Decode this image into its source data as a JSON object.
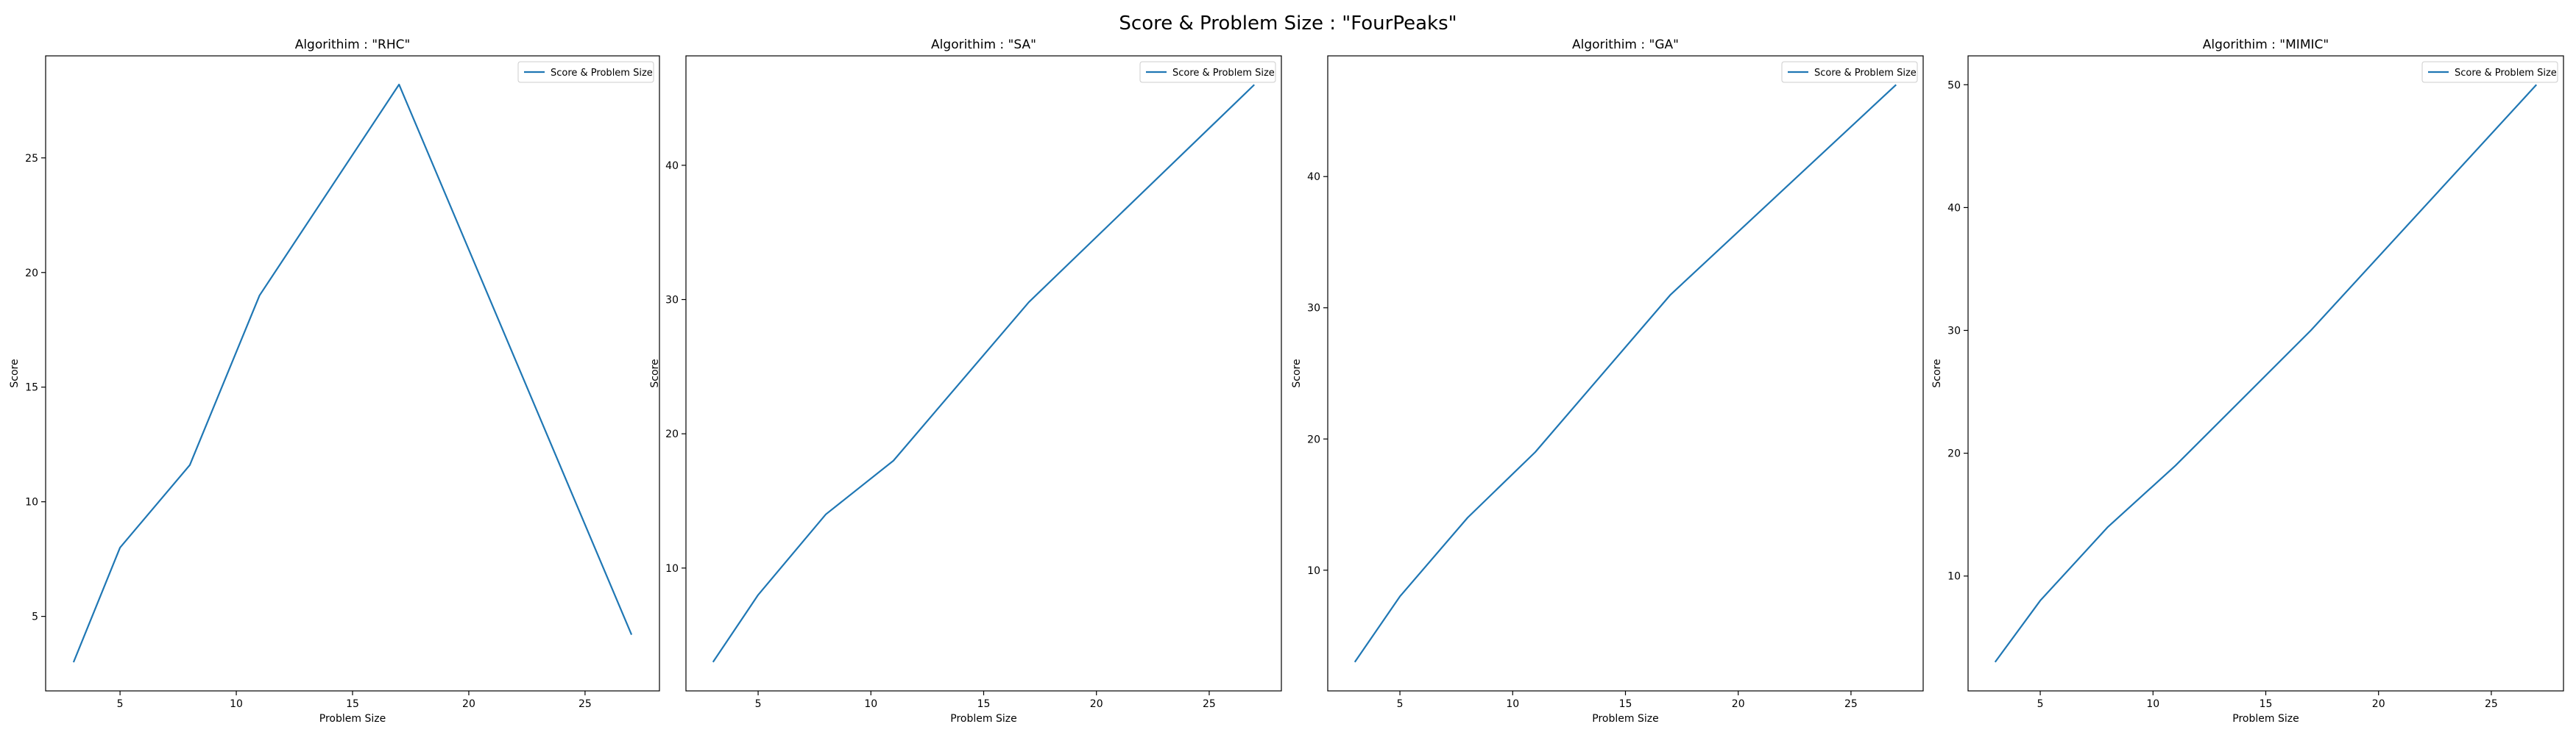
{
  "figure": {
    "title": "Score & Problem Size : \"FourPeaks\""
  },
  "style": {
    "line_color": "#1f77b4",
    "axis_color": "#000000",
    "background": "#ffffff"
  },
  "chart_data": [
    {
      "type": "line",
      "title": "Algorithim : \"RHC\"",
      "xlabel": "Problem Size",
      "ylabel": "Score",
      "legend": "top-right",
      "grid": false,
      "xlim": [
        1.8,
        28.2
      ],
      "ylim": [
        1.75,
        29.45
      ],
      "xticks": [
        5,
        10,
        15,
        20,
        25
      ],
      "yticks": [
        5,
        10,
        15,
        20,
        25
      ],
      "series": [
        {
          "name": "Score & Problem Size",
          "x": [
            3,
            5,
            8,
            11,
            17,
            27
          ],
          "y": [
            3,
            8,
            11.6,
            19,
            28.2,
            4.2
          ]
        }
      ]
    },
    {
      "type": "line",
      "title": "Algorithim : \"SA\"",
      "xlabel": "Problem Size",
      "ylabel": "Score",
      "legend": "top-right",
      "grid": false,
      "xlim": [
        1.8,
        28.2
      ],
      "ylim": [
        0.85,
        48.15
      ],
      "xticks": [
        5,
        10,
        15,
        20,
        25
      ],
      "yticks": [
        10,
        20,
        30,
        40
      ],
      "series": [
        {
          "name": "Score & Problem Size",
          "x": [
            3,
            5,
            8,
            11,
            17,
            27
          ],
          "y": [
            3,
            8,
            14,
            18,
            29.8,
            46
          ]
        }
      ]
    },
    {
      "type": "line",
      "title": "Algorithim : \"GA\"",
      "xlabel": "Problem Size",
      "ylabel": "Score",
      "legend": "top-right",
      "grid": false,
      "xlim": [
        1.8,
        28.2
      ],
      "ylim": [
        0.8,
        49.2
      ],
      "xticks": [
        5,
        10,
        15,
        20,
        25
      ],
      "yticks": [
        10,
        20,
        30,
        40
      ],
      "series": [
        {
          "name": "Score & Problem Size",
          "x": [
            3,
            5,
            8,
            11,
            17,
            27
          ],
          "y": [
            3,
            8,
            14,
            19,
            31,
            47
          ]
        }
      ]
    },
    {
      "type": "line",
      "title": "Algorithim : \"MIMIC\"",
      "xlabel": "Problem Size",
      "ylabel": "Score",
      "legend": "top-right",
      "grid": false,
      "xlim": [
        1.8,
        28.2
      ],
      "ylim": [
        0.65,
        52.35
      ],
      "xticks": [
        5,
        10,
        15,
        20,
        25
      ],
      "yticks": [
        10,
        20,
        30,
        40,
        50
      ],
      "series": [
        {
          "name": "Score & Problem Size",
          "x": [
            3,
            5,
            8,
            11,
            17,
            27
          ],
          "y": [
            3,
            8,
            14,
            19,
            30,
            50
          ]
        }
      ]
    }
  ]
}
